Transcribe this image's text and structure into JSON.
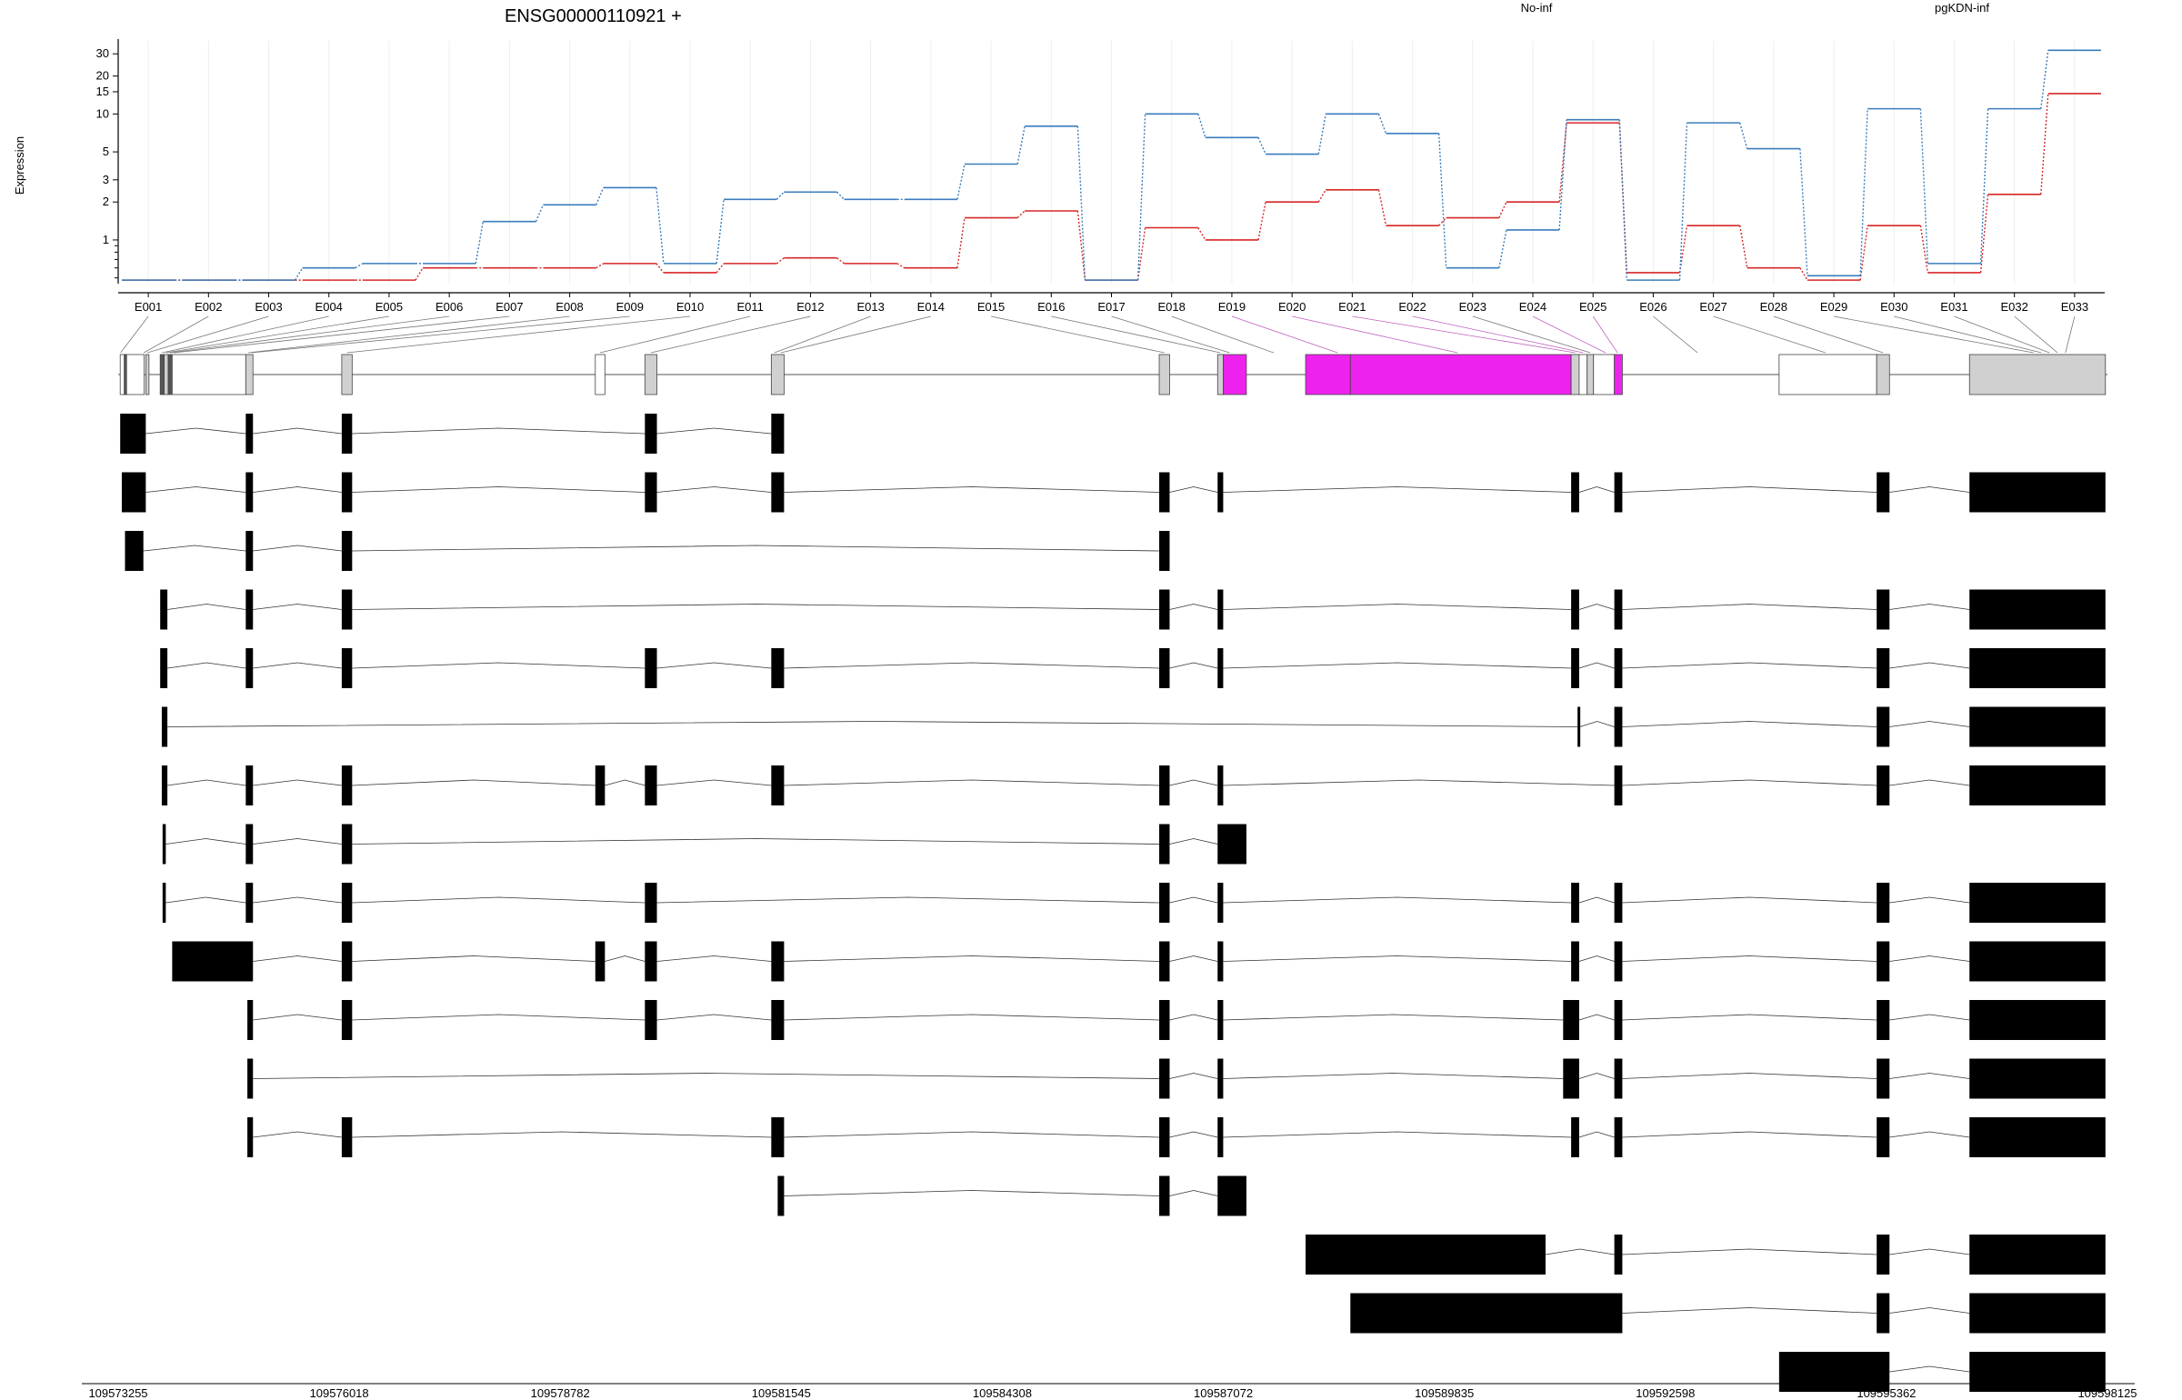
{
  "chart_data": {
    "type": "line",
    "title": "ENSG00000110921 +",
    "ylabel": "Expression",
    "yscale": "log",
    "ylim": [
      0.45,
      38
    ],
    "y_ticks": [
      1,
      2,
      3,
      5,
      10,
      15,
      20,
      30
    ],
    "grid": "vertical",
    "legend_placement": "top-right",
    "categories": [
      "E001",
      "E002",
      "E003",
      "E004",
      "E005",
      "E006",
      "E007",
      "E008",
      "E009",
      "E010",
      "E011",
      "E012",
      "E013",
      "E014",
      "E015",
      "E016",
      "E017",
      "E018",
      "E019",
      "E020",
      "E021",
      "E022",
      "E023",
      "E024",
      "E025",
      "E026",
      "E027",
      "E028",
      "E029",
      "E030",
      "E031",
      "E032",
      "E033"
    ],
    "series": [
      {
        "name": "No-inf",
        "color": "#d62728",
        "values": [
          0.48,
          0.48,
          0.48,
          0.48,
          0.48,
          0.6,
          0.6,
          0.6,
          0.65,
          0.55,
          0.65,
          0.72,
          0.65,
          0.6,
          1.5,
          1.7,
          0.48,
          1.25,
          1.0,
          2.0,
          2.5,
          1.3,
          1.5,
          2.0,
          8.5,
          0.55,
          1.3,
          0.6,
          0.48,
          1.3,
          0.55,
          2.3,
          14.5
        ]
      },
      {
        "name": "pgKDN-inf",
        "color": "#3a7dbd",
        "values": [
          0.48,
          0.48,
          0.48,
          0.6,
          0.65,
          0.65,
          1.4,
          1.9,
          2.6,
          0.65,
          2.1,
          2.4,
          2.1,
          2.1,
          4.0,
          8.0,
          0.48,
          10.0,
          6.5,
          4.8,
          10.0,
          7.0,
          0.6,
          1.2,
          9.0,
          0.48,
          8.5,
          5.3,
          0.52,
          11.0,
          0.65,
          11.0,
          32.0
        ]
      }
    ],
    "genomic_axis": {
      "ticks": [
        "109573255",
        "109576018",
        "109578782",
        "109581545",
        "109584308",
        "109587072",
        "109589835",
        "109592598",
        "109595362",
        "109598125"
      ],
      "start": 109573255,
      "end": 109598125
    },
    "gene_model": {
      "exons": [
        {
          "start": 109573280,
          "end": 109573580,
          "color": "#ffffff"
        },
        {
          "start": 109573330,
          "end": 109573360,
          "color": "#555555"
        },
        {
          "start": 109573600,
          "end": 109573640,
          "color": "#d0d0d0"
        },
        {
          "start": 109573780,
          "end": 109573830,
          "color": "#555555"
        },
        {
          "start": 109573830,
          "end": 109573880,
          "color": "#d0d0d0"
        },
        {
          "start": 109573880,
          "end": 109573930,
          "color": "#555555"
        },
        {
          "start": 109573930,
          "end": 109574850,
          "color": "#ffffff"
        },
        {
          "start": 109574850,
          "end": 109574940,
          "color": "#d0d0d0"
        },
        {
          "start": 109576050,
          "end": 109576180,
          "color": "#d0d0d0"
        },
        {
          "start": 109579220,
          "end": 109579340,
          "color": "#ffffff"
        },
        {
          "start": 109579840,
          "end": 109579990,
          "color": "#d0d0d0"
        },
        {
          "start": 109581420,
          "end": 109581580,
          "color": "#d0d0d0"
        },
        {
          "start": 109586270,
          "end": 109586400,
          "color": "#d0d0d0"
        },
        {
          "start": 109587000,
          "end": 109587070,
          "color": "#d0d0d0"
        },
        {
          "start": 109587070,
          "end": 109587360,
          "color": "#ee22ee"
        },
        {
          "start": 109588100,
          "end": 109588660,
          "color": "#ee22ee"
        },
        {
          "start": 109588660,
          "end": 109591420,
          "color": "#ee22ee"
        },
        {
          "start": 109591420,
          "end": 109591520,
          "color": "#d0d0d0"
        },
        {
          "start": 109591520,
          "end": 109591620,
          "color": "#ffffff"
        },
        {
          "start": 109591620,
          "end": 109591700,
          "color": "#d0d0d0"
        },
        {
          "start": 109591700,
          "end": 109591960,
          "color": "#ffffff"
        },
        {
          "start": 109591960,
          "end": 109592060,
          "color": "#ee22ee"
        },
        {
          "start": 109594020,
          "end": 109595240,
          "color": "#ffffff"
        },
        {
          "start": 109595240,
          "end": 109595400,
          "color": "#d0d0d0"
        },
        {
          "start": 109596400,
          "end": 109598100,
          "color": "#d0d0d0"
        }
      ],
      "bin_targets": [
        109573285,
        109573575,
        109573620,
        109573805,
        109573855,
        109573905,
        109573950,
        109574880,
        109574920,
        109576115,
        109579280,
        109579915,
        109581460,
        109581540,
        109586335,
        109587035,
        109587150,
        109587700,
        109588500,
        109590000,
        109591470,
        109591570,
        109591660,
        109591850,
        109592000,
        109593000,
        109594600,
        109595320,
        109597200,
        109597300,
        109597400,
        109597500,
        109597600
      ]
    },
    "transcripts": [
      [
        [
          109573280,
          109573600
        ],
        [
          109574850,
          109574940
        ],
        [
          109576050,
          109576180
        ],
        [
          109579840,
          109579990
        ],
        [
          109581420,
          109581580
        ]
      ],
      [
        [
          109573300,
          109573600
        ],
        [
          109574850,
          109574940
        ],
        [
          109576050,
          109576180
        ],
        [
          109579840,
          109579990
        ],
        [
          109581420,
          109581580
        ],
        [
          109586270,
          109586400
        ],
        [
          109587000,
          109587070
        ],
        [
          109591420,
          109591520
        ],
        [
          109591960,
          109592060
        ],
        [
          109595240,
          109595400
        ],
        [
          109596400,
          109598100
        ]
      ],
      [
        [
          109573340,
          109573570
        ],
        [
          109574850,
          109574940
        ],
        [
          109576050,
          109576180
        ],
        [
          109586270,
          109586400
        ]
      ],
      [
        [
          109573780,
          109573870
        ],
        [
          109574850,
          109574940
        ],
        [
          109576050,
          109576180
        ],
        [
          109586270,
          109586400
        ],
        [
          109587000,
          109587070
        ],
        [
          109591420,
          109591520
        ],
        [
          109591960,
          109592060
        ],
        [
          109595240,
          109595400
        ],
        [
          109596400,
          109598100
        ]
      ],
      [
        [
          109573780,
          109573870
        ],
        [
          109574850,
          109574940
        ],
        [
          109576050,
          109576180
        ],
        [
          109579840,
          109579990
        ],
        [
          109581420,
          109581580
        ],
        [
          109586270,
          109586400
        ],
        [
          109587000,
          109587070
        ],
        [
          109591420,
          109591520
        ],
        [
          109591960,
          109592060
        ],
        [
          109595240,
          109595400
        ],
        [
          109596400,
          109598100
        ]
      ],
      [
        [
          109573800,
          109573870
        ],
        [
          109591500,
          109591530
        ],
        [
          109591960,
          109592060
        ],
        [
          109595240,
          109595400
        ],
        [
          109596400,
          109598100
        ]
      ],
      [
        [
          109573800,
          109573870
        ],
        [
          109574850,
          109574940
        ],
        [
          109576050,
          109576180
        ],
        [
          109579220,
          109579340
        ],
        [
          109579840,
          109579990
        ],
        [
          109581420,
          109581580
        ],
        [
          109586270,
          109586400
        ],
        [
          109587000,
          109587070
        ],
        [
          109591960,
          109592060
        ],
        [
          109595240,
          109595400
        ],
        [
          109596400,
          109598100
        ]
      ],
      [
        [
          109573810,
          109573850
        ],
        [
          109574850,
          109574940
        ],
        [
          109576050,
          109576180
        ],
        [
          109586270,
          109586400
        ],
        [
          109587000,
          109587360
        ]
      ],
      [
        [
          109573810,
          109573850
        ],
        [
          109574850,
          109574940
        ],
        [
          109576050,
          109576180
        ],
        [
          109579840,
          109579990
        ],
        [
          109586270,
          109586400
        ],
        [
          109587000,
          109587070
        ],
        [
          109591420,
          109591520
        ],
        [
          109591960,
          109592060
        ],
        [
          109595240,
          109595400
        ],
        [
          109596400,
          109598100
        ]
      ],
      [
        [
          109573930,
          109574940
        ],
        [
          109576050,
          109576180
        ],
        [
          109579220,
          109579340
        ],
        [
          109579840,
          109579990
        ],
        [
          109581420,
          109581580
        ],
        [
          109586270,
          109586400
        ],
        [
          109587000,
          109587070
        ],
        [
          109591420,
          109591520
        ],
        [
          109591960,
          109592060
        ],
        [
          109595240,
          109595400
        ],
        [
          109596400,
          109598100
        ]
      ],
      [
        [
          109574870,
          109574940
        ],
        [
          109576050,
          109576180
        ],
        [
          109579840,
          109579990
        ],
        [
          109581420,
          109581580
        ],
        [
          109586270,
          109586400
        ],
        [
          109587000,
          109587070
        ],
        [
          109591320,
          109591520
        ],
        [
          109591960,
          109592060
        ],
        [
          109595240,
          109595400
        ],
        [
          109596400,
          109598100
        ]
      ],
      [
        [
          109574870,
          109574940
        ],
        [
          109586270,
          109586400
        ],
        [
          109587000,
          109587070
        ],
        [
          109591320,
          109591520
        ],
        [
          109591960,
          109592060
        ],
        [
          109595240,
          109595400
        ],
        [
          109596400,
          109598100
        ]
      ],
      [
        [
          109574870,
          109574940
        ],
        [
          109576050,
          109576180
        ],
        [
          109581420,
          109581580
        ],
        [
          109586270,
          109586400
        ],
        [
          109587000,
          109587070
        ],
        [
          109591420,
          109591520
        ],
        [
          109591960,
          109592060
        ],
        [
          109595240,
          109595400
        ],
        [
          109596400,
          109598100
        ]
      ],
      [
        [
          109581500,
          109581580
        ],
        [
          109586270,
          109586400
        ],
        [
          109587000,
          109587360
        ]
      ],
      [
        [
          109588100,
          109591100
        ],
        [
          109591960,
          109592060
        ],
        [
          109595240,
          109595400
        ],
        [
          109596400,
          109598100
        ]
      ],
      [
        [
          109588660,
          109592060
        ],
        [
          109595240,
          109595400
        ],
        [
          109596400,
          109598100
        ]
      ],
      [
        [
          109594020,
          109595400
        ],
        [
          109596400,
          109598100
        ]
      ]
    ]
  }
}
